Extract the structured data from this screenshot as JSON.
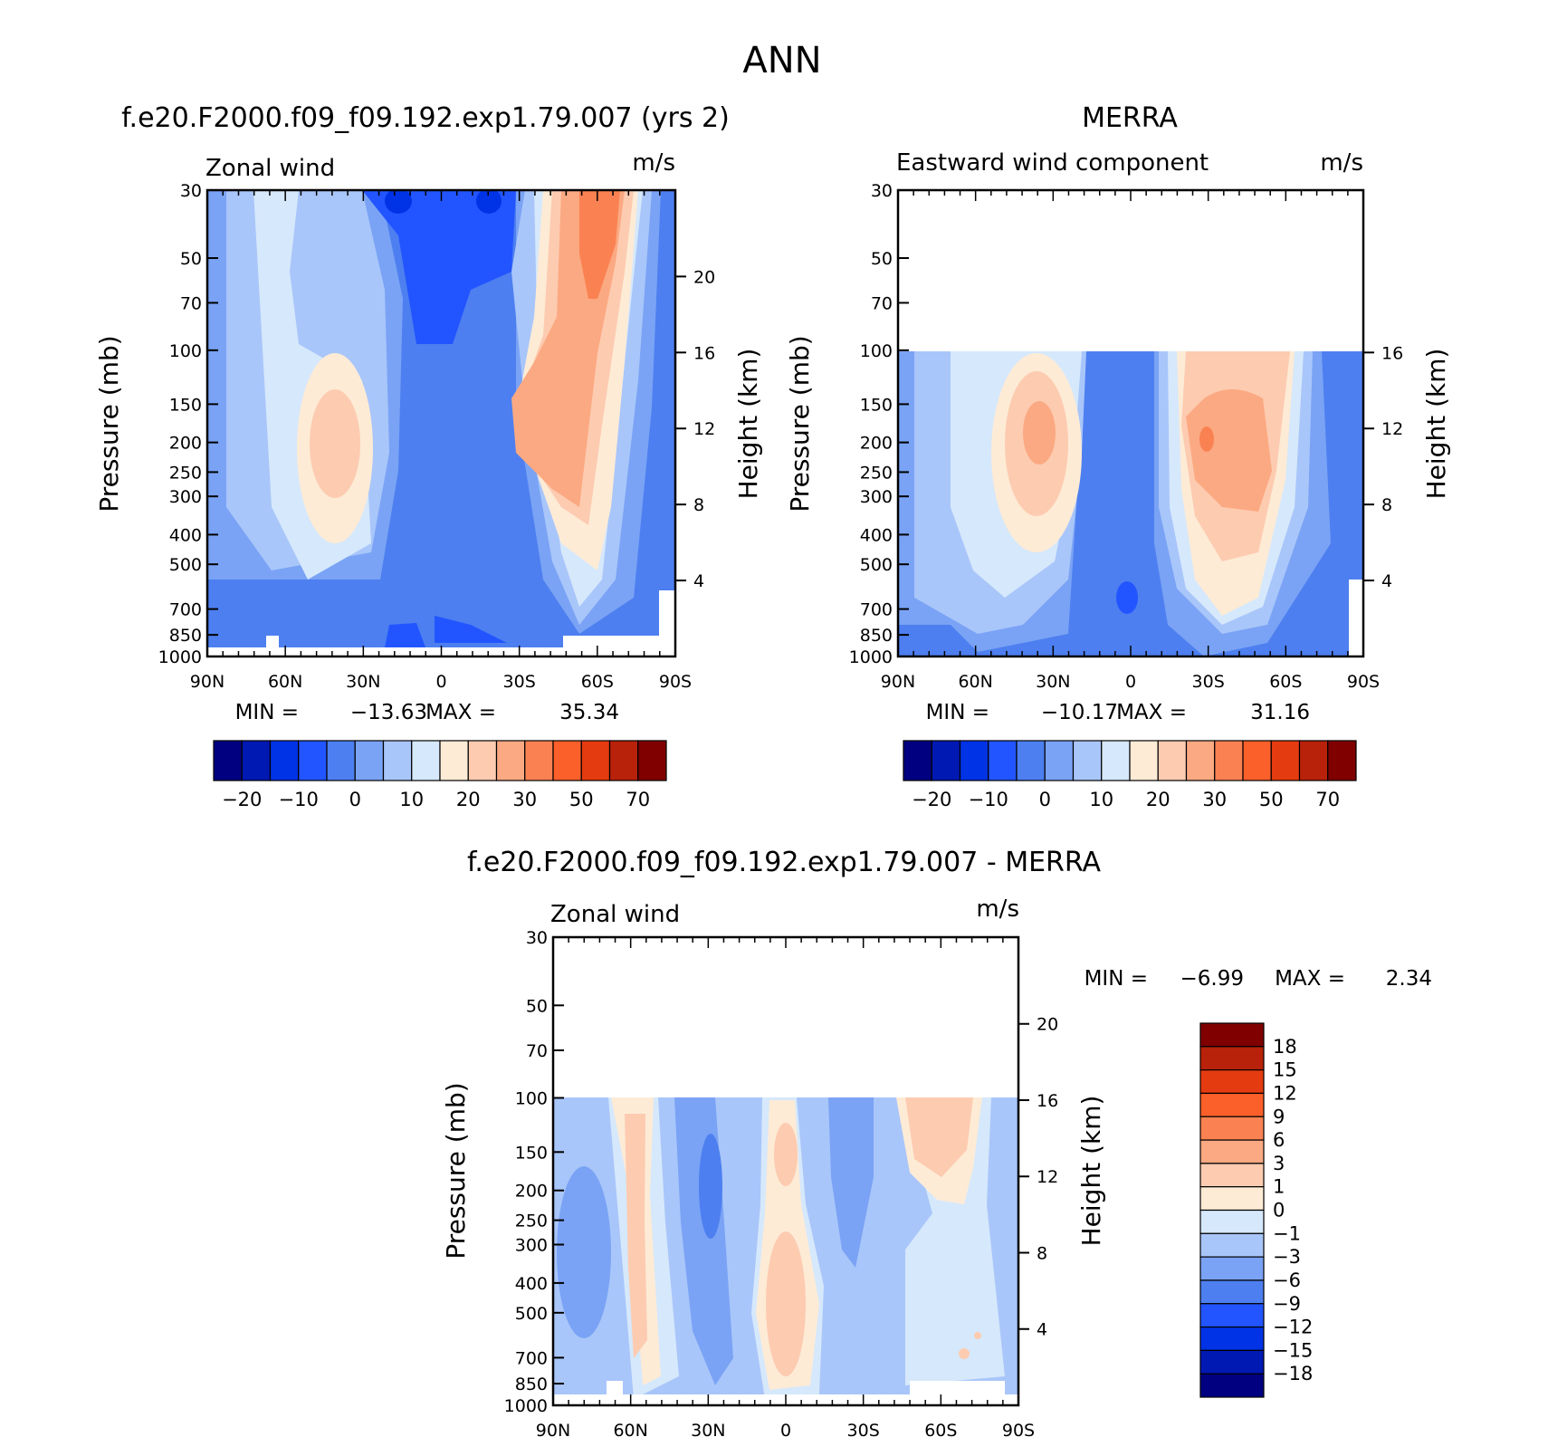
{
  "figure_title": "ANN",
  "chart_data": [
    {
      "id": "model",
      "type": "contour",
      "panel_title": "f.e20.F2000.f09_f09.192.exp1.79.007 (yrs 2)",
      "variable_label": "Zonal wind",
      "units": "m/s",
      "xlabel": "",
      "ylabel": "Pressure (mb)",
      "y2label": "Height (km)",
      "x_ticks": [
        "90N",
        "60N",
        "30N",
        "0",
        "30S",
        "60S",
        "90S"
      ],
      "x_range": [
        90,
        -90
      ],
      "pressure_ticks": [
        30,
        50,
        70,
        100,
        150,
        200,
        250,
        300,
        400,
        500,
        700,
        850,
        1000
      ],
      "height_ticks": [
        20,
        16,
        12,
        8,
        4
      ],
      "data_top_mb": 30,
      "stats": {
        "min_label": "MIN =",
        "min": "-13.63",
        "max_label": "MAX =",
        "max": "35.34"
      },
      "jets": [
        {
          "lat": 40,
          "p": 200,
          "peak": 23
        },
        {
          "lat": -45,
          "p": 220,
          "peak": 35
        },
        {
          "lat": -55,
          "p": 40,
          "peak": 32
        }
      ],
      "minima": [
        {
          "lat": 0,
          "p": 60,
          "value": -13.6
        }
      ]
    },
    {
      "id": "obs",
      "type": "contour",
      "panel_title": "MERRA",
      "variable_label": "Eastward wind component",
      "units": "m/s",
      "ylabel": "Pressure (mb)",
      "y2label": "Height (km)",
      "x_ticks": [
        "90N",
        "60N",
        "30N",
        "0",
        "30S",
        "60S",
        "90S"
      ],
      "x_range": [
        90,
        -90
      ],
      "pressure_ticks": [
        30,
        50,
        70,
        100,
        150,
        200,
        250,
        300,
        400,
        500,
        700,
        850,
        1000
      ],
      "height_ticks": [
        16,
        12,
        8,
        4
      ],
      "data_top_mb": 100,
      "stats": {
        "min_label": "MIN =",
        "min": "-10.17",
        "max_label": "MAX =",
        "max": "31.16"
      },
      "jets": [
        {
          "lat": 35,
          "p": 200,
          "peak": 28
        },
        {
          "lat": -35,
          "p": 210,
          "peak": 31
        }
      ]
    },
    {
      "id": "diff",
      "type": "contour",
      "panel_title": "f.e20.F2000.f09_f09.192.exp1.79.007 - MERRA",
      "variable_label": "Zonal wind",
      "units": "m/s",
      "ylabel": "Pressure (mb)",
      "y2label": "Height (km)",
      "x_ticks": [
        "90N",
        "60N",
        "30N",
        "0",
        "30S",
        "60S",
        "90S"
      ],
      "x_range": [
        90,
        -90
      ],
      "pressure_ticks": [
        30,
        50,
        70,
        100,
        150,
        200,
        250,
        300,
        400,
        500,
        700,
        850,
        1000
      ],
      "height_ticks": [
        20,
        16,
        12,
        8,
        4
      ],
      "data_top_mb": 100,
      "stats": {
        "min_label": "MIN =",
        "min": "-6.99",
        "max_label": "MAX =",
        "max": "2.34"
      }
    }
  ],
  "colorbar_main": {
    "tick_labels": [
      "-20",
      "-10",
      "0",
      "10",
      "20",
      "30",
      "50",
      "70"
    ],
    "colors": [
      "#000080",
      "#0019b3",
      "#0033e6",
      "#2255ff",
      "#4d7ff0",
      "#7aa3f5",
      "#a9c6fa",
      "#d6e8fb",
      "#fdebd6",
      "#fdcbb0",
      "#fba982",
      "#fa8252",
      "#fb5f2a",
      "#e53b10",
      "#b8220a",
      "#800000"
    ]
  },
  "colorbar_diff": {
    "tick_labels": [
      "18",
      "15",
      "12",
      "9",
      "6",
      "3",
      "1",
      "0",
      "-1",
      "-3",
      "-6",
      "-9",
      "-12",
      "-15",
      "-18"
    ],
    "colors": [
      "#800000",
      "#b8220a",
      "#e53b10",
      "#fb5f2a",
      "#fa8252",
      "#fba982",
      "#fdcbb0",
      "#fdebd6",
      "#d6e8fb",
      "#a9c6fa",
      "#7aa3f5",
      "#4d7ff0",
      "#2255ff",
      "#0033e6",
      "#0019b3",
      "#000080"
    ]
  }
}
